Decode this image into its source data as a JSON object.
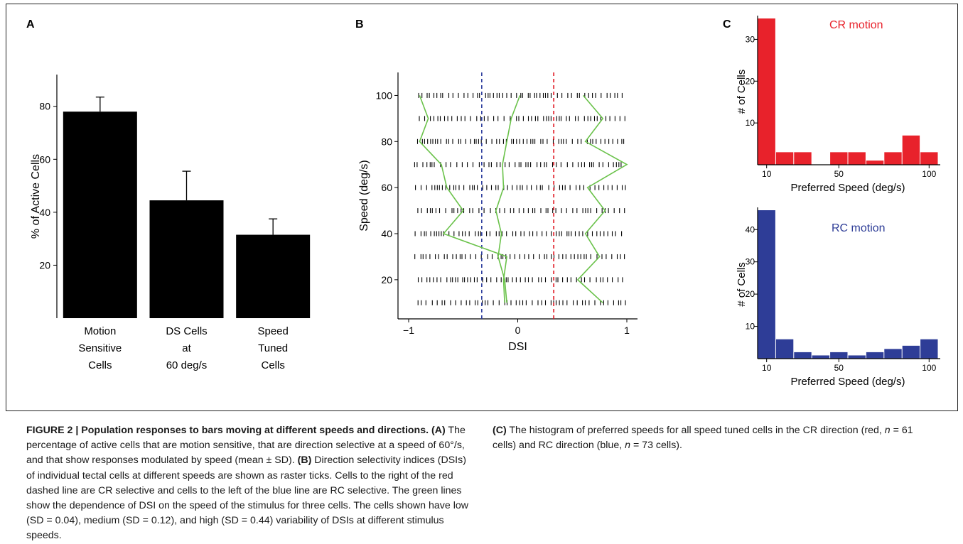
{
  "panels": {
    "a": {
      "letter": "A"
    },
    "b": {
      "letter": "B"
    },
    "c": {
      "letter": "C"
    }
  },
  "chart_data": [
    {
      "type": "bar",
      "categories": [
        "Motion Sensitive Cells",
        "DS Cells at 60 deg/s",
        "Speed Tuned Cells"
      ],
      "category_lines": [
        [
          "Motion",
          "Sensitive",
          "Cells"
        ],
        [
          "DS Cells",
          "at",
          "60 deg/s"
        ],
        [
          "Speed",
          "Tuned",
          "Cells"
        ]
      ],
      "values": [
        78,
        44.5,
        31.5
      ],
      "errors": [
        5.5,
        11,
        6
      ],
      "ylabel": "% of Active Cells",
      "ylim": [
        0,
        92
      ],
      "yticks": [
        20,
        40,
        60,
        80
      ],
      "colors": {
        "bar": "#000000"
      }
    },
    {
      "type": "scatter",
      "xlabel": "DSI",
      "ylabel": "Speed (deg/s)",
      "xlim": [
        -1.08,
        1.08
      ],
      "ylim": [
        3,
        110
      ],
      "xticks": [
        -1,
        0,
        1
      ],
      "yticks": [
        20,
        40,
        60,
        80,
        100
      ],
      "speeds": [
        10,
        20,
        30,
        40,
        50,
        60,
        70,
        80,
        90,
        100
      ],
      "thresholds": [
        {
          "x": -0.33,
          "color": "#2a3b9c"
        },
        {
          "x": 0.33,
          "color": "#e0141e"
        }
      ],
      "cells": [
        {
          "dsi": [
            -0.12,
            -0.13,
            -0.1,
            -0.68,
            -0.5,
            -0.65,
            -0.7,
            -0.9,
            -0.82,
            -0.9
          ],
          "color": "#6ac24a"
        },
        {
          "dsi": [
            -0.1,
            -0.12,
            -0.18,
            -0.15,
            -0.2,
            -0.13,
            -0.14,
            -0.1,
            -0.06,
            0.02
          ],
          "color": "#6ac24a"
        },
        {
          "dsi": [
            0.78,
            0.55,
            0.75,
            0.62,
            0.8,
            0.64,
            1.0,
            0.62,
            0.78,
            0.6
          ],
          "color": "#6ac24a"
        }
      ]
    },
    {
      "type": "bar",
      "title": "CR motion",
      "xlabel": "Preferred Speed (deg/s)",
      "ylabel": "# of Cells",
      "categories": [
        10,
        20,
        30,
        40,
        50,
        60,
        70,
        80,
        90,
        100
      ],
      "values": [
        35,
        3,
        3,
        0,
        3,
        3,
        1,
        3,
        7,
        3
      ],
      "ylim": [
        0,
        35
      ],
      "yticks": [
        10,
        20,
        30
      ],
      "xticks": [
        10,
        50,
        100
      ],
      "colors": {
        "bar": "#e8222b",
        "title": "#e8222b"
      }
    },
    {
      "type": "bar",
      "title": "RC motion",
      "xlabel": "Preferred Speed (deg/s)",
      "ylabel": "# of Cells",
      "categories": [
        10,
        20,
        30,
        40,
        50,
        60,
        70,
        80,
        90,
        100
      ],
      "values": [
        46,
        6,
        2,
        1,
        2,
        1,
        2,
        3,
        4,
        6
      ],
      "ylim": [
        0,
        46
      ],
      "yticks": [
        10,
        20,
        30,
        40
      ],
      "xticks": [
        10,
        50,
        100
      ],
      "colors": {
        "bar": "#2e3d97",
        "title": "#2e3d97"
      }
    }
  ],
  "caption": {
    "heading": "FIGURE 2 | Population responses to bars moving at different speeds and directions.",
    "a_label": "(A)",
    "a_text": "The percentage of active cells that are motion sensitive, that are direction selective at a speed of 60°/s, and that show responses modulated by speed (mean ± SD).",
    "b_label": "(B)",
    "b_text": "Direction selectivity indices (DSIs) of individual tectal cells at different speeds are shown as raster ticks. Cells to the right of the red dashed line are CR selective and cells to the left of the blue line are RC selective. The green lines show the dependence of DSI on the speed of the stimulus for three cells. The cells shown have low (SD = 0.04), medium (SD = 0.12), and high (SD = 0.44) variability of DSIs at different stimulus speeds.",
    "c_label": "(C)",
    "c_text_1": "The histogram of preferred speeds for all speed tuned cells in the CR direction (red,",
    "n_label": "n",
    "c_cr_n": "= 61 cells) and RC direction (blue,",
    "c_rc_n": "= 73 cells)."
  }
}
